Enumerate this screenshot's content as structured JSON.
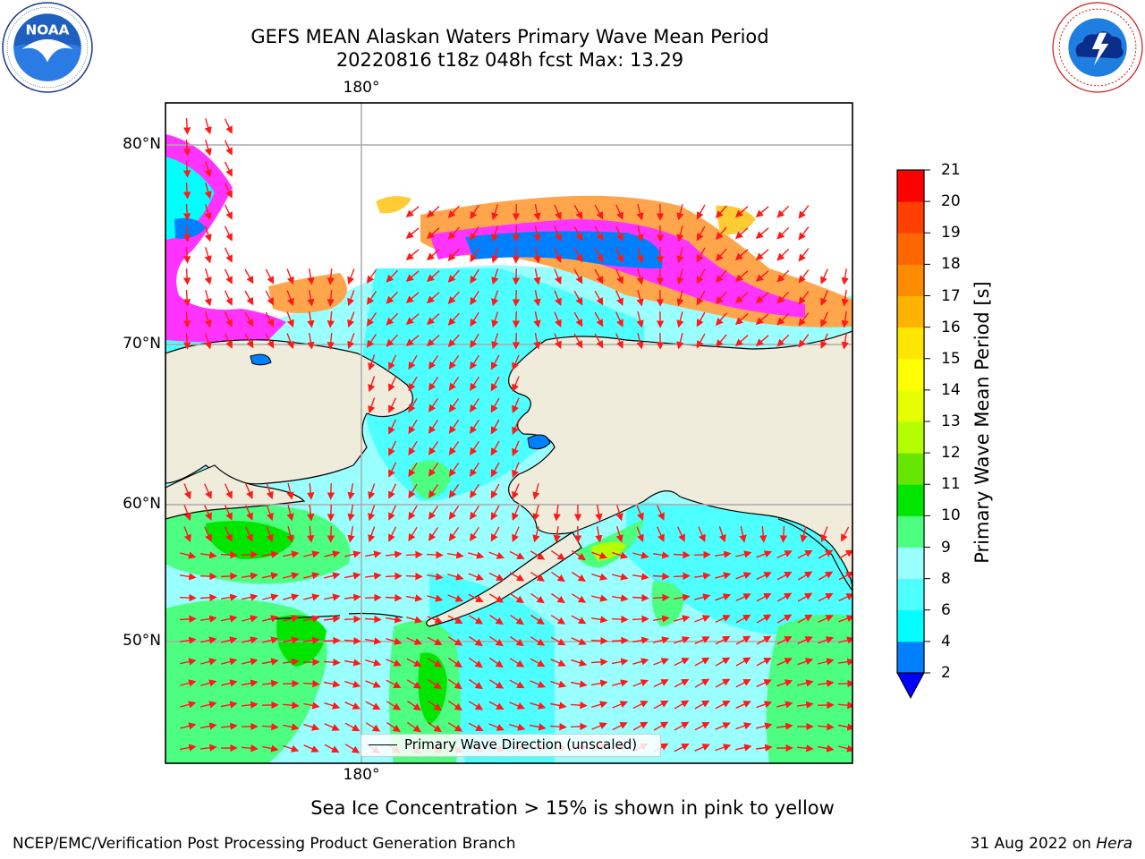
{
  "title": {
    "line1": "GEFS MEAN Alaskan Waters Primary Wave Mean Period",
    "line2": "20220816 t18z 048h fcst   Max: 13.29"
  },
  "logos": {
    "left": {
      "name": "noaa-logo",
      "text": "NOAA",
      "ring_text": "NATIONAL OCEANIC AND ATMOSPHERIC ADMINISTRATION · U.S. DEPARTMENT OF COMMERCE"
    },
    "right": {
      "name": "nws-logo",
      "ring_text": "NATIONAL WEATHER SERVICE"
    }
  },
  "map": {
    "longitude_labels": {
      "top": "180°",
      "bottom": "180°"
    },
    "latitude_labels": [
      "80°N",
      "70°N",
      "60°N",
      "50°N"
    ],
    "land_color": "#efecdc",
    "ocean_fill_colors": {
      "low_period": "#66ffff",
      "mid_period": "#99ffff",
      "high_period": "#4dff80",
      "sea_ice": [
        "#ff33ff",
        "#ffa64d",
        "#ffcc33"
      ]
    },
    "arrow_color": "#ff1a1a",
    "legend": {
      "label": "Primary Wave Direction (unscaled)"
    }
  },
  "colorbar": {
    "label": "Primary Wave Mean Period [s]",
    "ticks": [
      "21",
      "20",
      "19",
      "18",
      "17",
      "16",
      "15",
      "14",
      "13",
      "12",
      "11",
      "10",
      "9",
      "8",
      "6",
      "4",
      "2"
    ],
    "bins_low_to_high": [
      {
        "from": 2,
        "to": 4,
        "color": "#0080ff"
      },
      {
        "from": 4,
        "to": 6,
        "color": "#00ffff"
      },
      {
        "from": 6,
        "to": 8,
        "color": "#4dffff"
      },
      {
        "from": 8,
        "to": 9,
        "color": "#99ffff"
      },
      {
        "from": 9,
        "to": 10,
        "color": "#4dff80"
      },
      {
        "from": 10,
        "to": 11,
        "color": "#00e600"
      },
      {
        "from": 11,
        "to": 12,
        "color": "#66e600"
      },
      {
        "from": 12,
        "to": 13,
        "color": "#b3ff00"
      },
      {
        "from": 13,
        "to": 14,
        "color": "#e6ff00"
      },
      {
        "from": 14,
        "to": 15,
        "color": "#ffff00"
      },
      {
        "from": 15,
        "to": 16,
        "color": "#ffe600"
      },
      {
        "from": 16,
        "to": 17,
        "color": "#ffb300"
      },
      {
        "from": 17,
        "to": 18,
        "color": "#ff8c00"
      },
      {
        "from": 18,
        "to": 19,
        "color": "#ff6600"
      },
      {
        "from": 19,
        "to": 20,
        "color": "#ff4000"
      },
      {
        "from": 20,
        "to": 21,
        "color": "#ff0000"
      }
    ],
    "under_color": "#0000ff"
  },
  "note": "Sea Ice Concentration > 15% is shown in pink to yellow",
  "footer": {
    "left": "NCEP/EMC/Verification Post Processing Product Generation Branch",
    "right_date": "31 Aug 2022 on ",
    "right_machine": "Hera"
  }
}
